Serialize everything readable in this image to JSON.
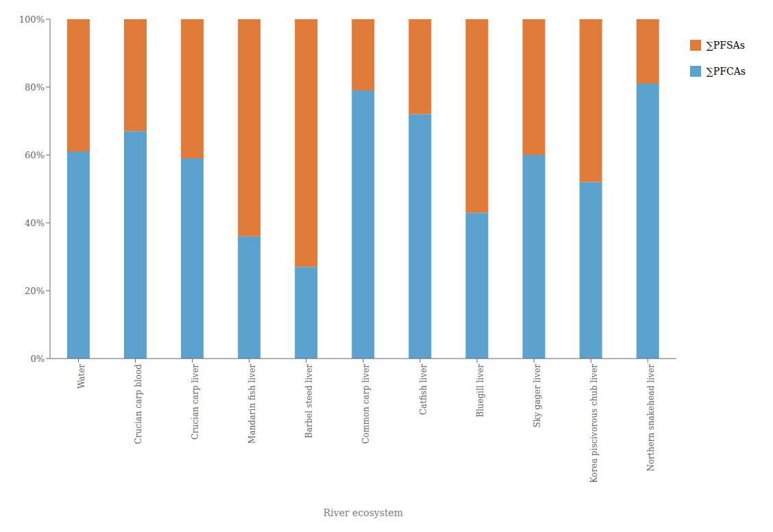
{
  "chart_data": {
    "type": "bar",
    "stacked": true,
    "xlabel": "River ecosystem",
    "categories": [
      "Water",
      "Crucian carp blood",
      "Crucian carp liver",
      "Mandarin fish liver",
      "Barbel steed liver",
      "Common carp liver",
      "Catfish liver",
      "Bluegill liver",
      "Sky gager liver",
      "Korea piscivorous chub liver",
      "Northern snakehead liver"
    ],
    "series": [
      {
        "name": "∑PFCAs",
        "color": "#5BA3CE",
        "values": [
          61,
          67,
          59,
          36,
          27,
          79,
          72,
          43,
          60,
          52,
          81
        ]
      },
      {
        "name": "∑PFSAs",
        "color": "#E07B39",
        "values": [
          39,
          33,
          41,
          64,
          73,
          21,
          28,
          57,
          40,
          48,
          19
        ]
      }
    ],
    "ylim": [
      0,
      100
    ],
    "yticks": [
      {
        "value": 0,
        "label": "0%"
      },
      {
        "value": 20,
        "label": "20%"
      },
      {
        "value": 40,
        "label": "40%"
      },
      {
        "value": 60,
        "label": "60%"
      },
      {
        "value": 80,
        "label": "80%"
      },
      {
        "value": 100,
        "label": "100%"
      }
    ],
    "grid": false,
    "legend": "right"
  }
}
